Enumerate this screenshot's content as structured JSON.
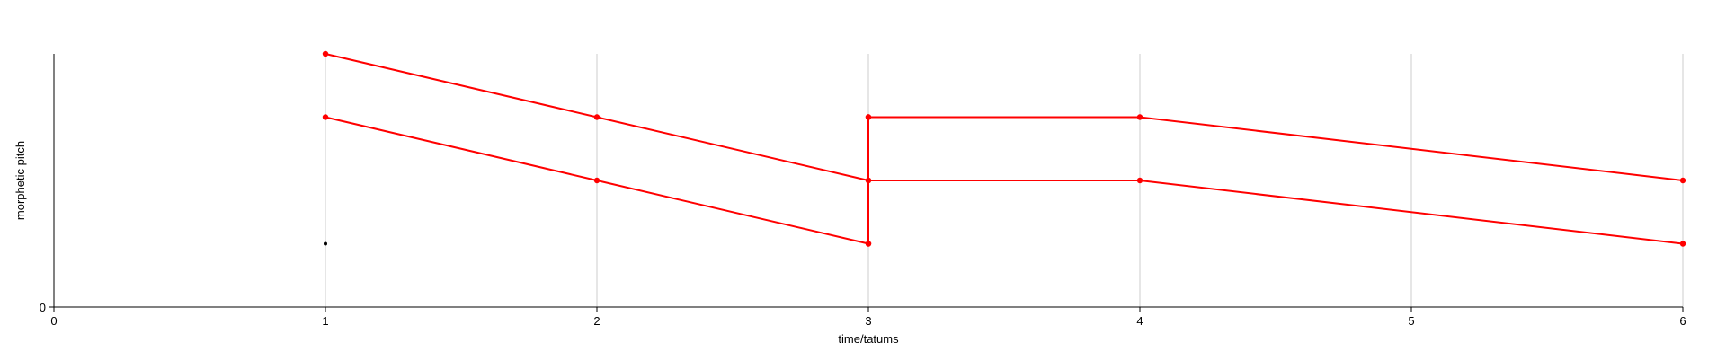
{
  "chart_data": {
    "type": "line",
    "title": "",
    "xlabel": "time/tatums",
    "ylabel": "morphetic pitch",
    "xlim": [
      0,
      6
    ],
    "ylim": [
      0,
      4
    ],
    "xticks": [
      "0",
      "1",
      "2",
      "3",
      "4",
      "5",
      "6"
    ],
    "yticks": [
      "0"
    ],
    "grid": "vertical lines at integer x",
    "colors": {
      "series": "#ff0000",
      "point": "#000000",
      "grid": "#cccccc",
      "axis": "#000000"
    },
    "series": [
      {
        "x": [
          1,
          2,
          3
        ],
        "y": [
          4,
          3,
          2
        ]
      },
      {
        "x": [
          1,
          2,
          3
        ],
        "y": [
          3,
          2,
          1
        ]
      },
      {
        "x": [
          3,
          3
        ],
        "y": [
          1,
          3
        ]
      },
      {
        "x": [
          3,
          4,
          6
        ],
        "y": [
          3,
          3,
          2
        ]
      },
      {
        "x": [
          3,
          4,
          6
        ],
        "y": [
          2,
          2,
          1
        ]
      }
    ],
    "points": [
      {
        "x": 1,
        "y": 1
      }
    ]
  }
}
